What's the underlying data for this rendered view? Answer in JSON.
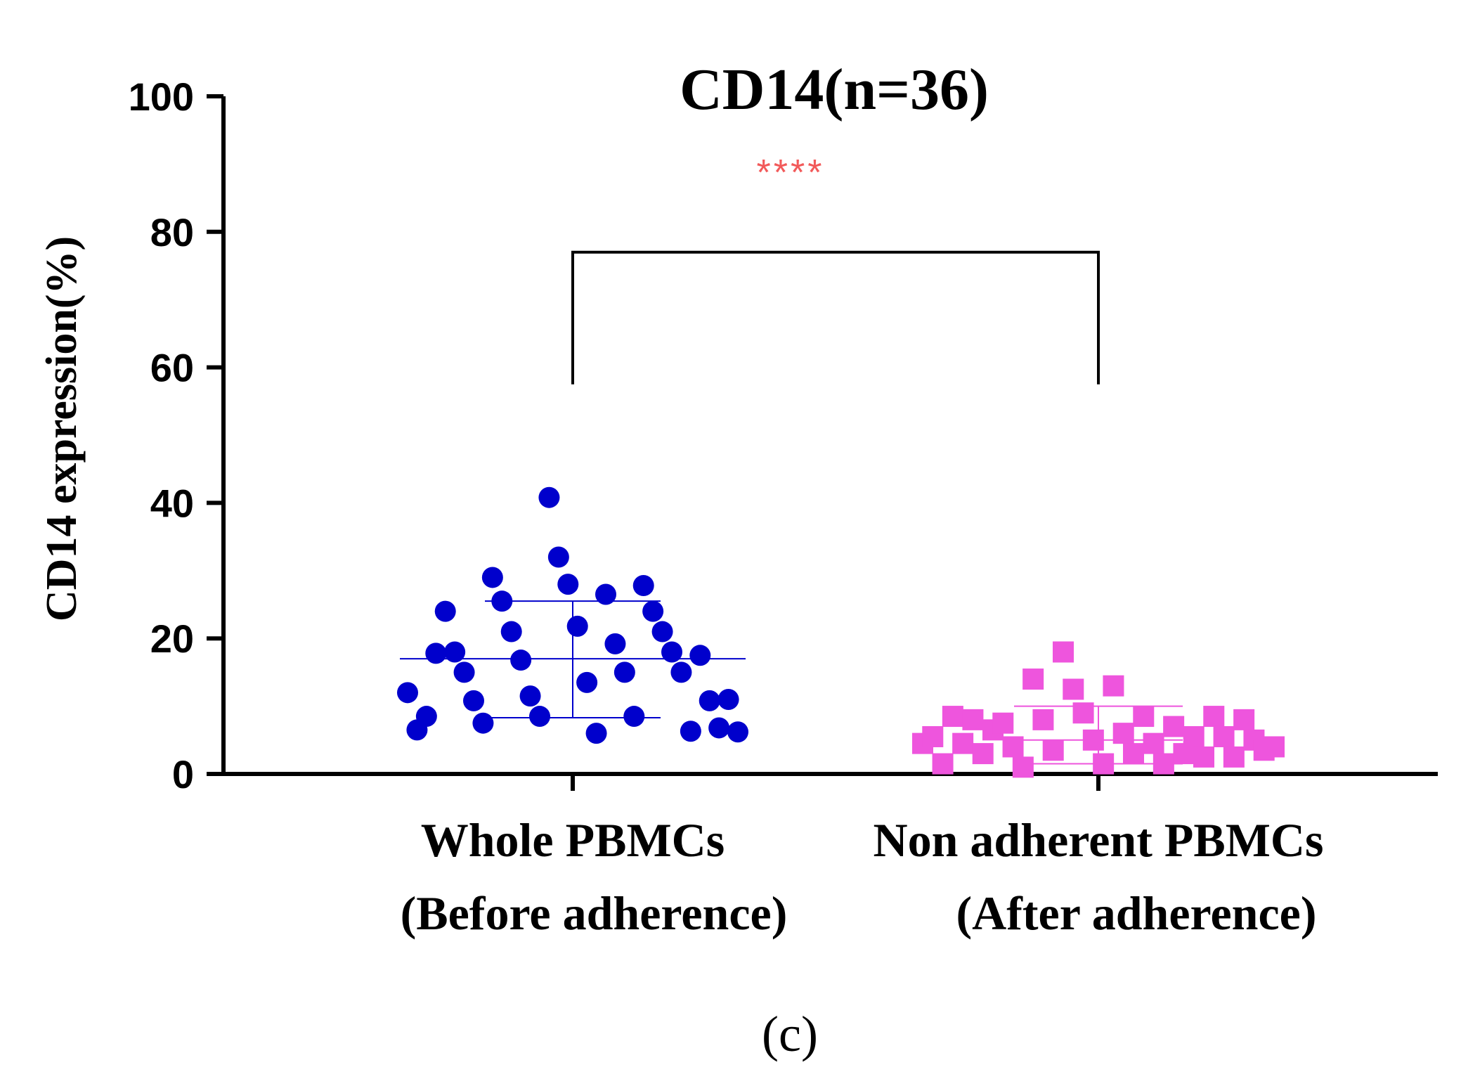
{
  "chart_data": {
    "type": "scatter",
    "title": "CD14(n=36)",
    "ylabel": "CD14 expression(%)",
    "xlabel": "",
    "ylim": [
      0,
      100
    ],
    "yticks": [
      0,
      20,
      40,
      60,
      80,
      100
    ],
    "grid": false,
    "categories": [
      {
        "line1": "Whole PBMCs",
        "line2": "(Before adherence)"
      },
      {
        "line1": "Non adherent PBMCs",
        "line2": "(After adherence)"
      }
    ],
    "series": [
      {
        "name": "Whole PBMCs (Before adherence)",
        "marker": "circle",
        "color": "#0000cc",
        "mean": 17,
        "sd_low": 8.3,
        "sd_high": 25.5,
        "values": [
          12,
          6.5,
          8.5,
          17.8,
          24,
          18,
          15,
          10.8,
          7.5,
          29,
          25.5,
          21,
          16.8,
          11.5,
          8.5,
          40.8,
          32,
          28,
          21.8,
          13.5,
          6,
          26.5,
          19.2,
          15,
          8.5,
          27.8,
          24,
          21,
          18,
          15,
          6.3,
          17.5,
          10.8,
          6.8,
          11,
          6.2
        ]
      },
      {
        "name": "Non adherent PBMCs (After adherence)",
        "marker": "square",
        "color": "#ee55dd",
        "mean": 5,
        "sd_low": 1.5,
        "sd_high": 10,
        "values": [
          4.5,
          5.5,
          1.5,
          8.5,
          4.5,
          8,
          3,
          6.5,
          7.5,
          4,
          1,
          14,
          8,
          3.5,
          18,
          12.5,
          9,
          5,
          1.5,
          13,
          6,
          3,
          8.5,
          4.5,
          1.5,
          7,
          3,
          5.5,
          2.5,
          8.5,
          5.5,
          2.5,
          8,
          5,
          3.5,
          4
        ]
      }
    ],
    "significance": {
      "label": "****",
      "color": "#f25a5a",
      "bracket_y": 77,
      "bracket_bottom": 57.5
    }
  },
  "panel_label": "(c)"
}
